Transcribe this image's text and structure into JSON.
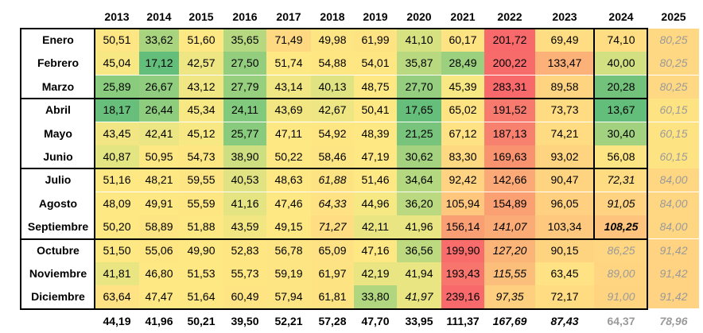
{
  "years": [
    "2013",
    "2014",
    "2015",
    "2016",
    "2017",
    "2018",
    "2019",
    "2020",
    "2021",
    "2022",
    "2023",
    "2024",
    "2025"
  ],
  "months": [
    "Enero",
    "Febrero",
    "Marzo",
    "Abril",
    "Mayo",
    "Junio",
    "Julio",
    "Agosto",
    "Septiembre",
    "Octubre",
    "Noviembre",
    "Diciembre"
  ],
  "rows": [
    {
      "values": [
        "50,51",
        "33,62",
        "51,60",
        "35,65",
        "71,49",
        "49,98",
        "61,99",
        "41,10",
        "60,17",
        "201,72",
        "69,49",
        "74,10",
        "80,25"
      ],
      "colors": [
        "#fde683",
        "#a9d47f",
        "#fee883",
        "#b5d880",
        "#ffd982",
        "#fde583",
        "#fee383",
        "#d6e182",
        "#fee383",
        "#f8696b",
        "#ffdd82",
        "#ffdd82",
        "#ffd883"
      ]
    },
    {
      "values": [
        "45,04",
        "17,12",
        "42,57",
        "27,50",
        "51,74",
        "54,88",
        "54,01",
        "35,87",
        "28,49",
        "200,22",
        "133,47",
        "40,00",
        "80,25"
      ],
      "colors": [
        "#f8e883",
        "#63be7b",
        "#eee683",
        "#93ce7e",
        "#fee883",
        "#fee683",
        "#fee683",
        "#b9d980",
        "#9bd07e",
        "#f86b6b",
        "#fcb178",
        "#d3e082",
        "#ffd883"
      ]
    },
    {
      "values": [
        "25,89",
        "26,67",
        "43,12",
        "27,79",
        "43,14",
        "40,13",
        "48,75",
        "27,70",
        "45,39",
        "283,31",
        "89,58",
        "20,28",
        "80,25"
      ],
      "colors": [
        "#8acc7e",
        "#90cd7e",
        "#f0e683",
        "#96cf7e",
        "#f0e683",
        "#dfe382",
        "#fee883",
        "#94ce7e",
        "#f8e883",
        "#f8696b",
        "#ffd481",
        "#72c27c",
        "#ffd883"
      ]
    },
    {
      "values": [
        "18,17",
        "26,44",
        "45,34",
        "24,11",
        "43,69",
        "42,67",
        "50,41",
        "17,65",
        "65,02",
        "191,52",
        "73,73",
        "13,67",
        "60,15"
      ],
      "colors": [
        "#68bf7b",
        "#8fcd7e",
        "#f8e883",
        "#81c97c",
        "#f2e683",
        "#eee683",
        "#fee883",
        "#66be7b",
        "#fee383",
        "#f87a6e",
        "#ffdc82",
        "#63be7b",
        "#fee383"
      ]
    },
    {
      "values": [
        "43,45",
        "42,41",
        "45,12",
        "25,77",
        "47,11",
        "54,92",
        "48,39",
        "21,25",
        "67,12",
        "187,13",
        "74,21",
        "30,40",
        "60,15"
      ],
      "colors": [
        "#f1e683",
        "#ebe583",
        "#f7e883",
        "#89cb7e",
        "#fee883",
        "#fee683",
        "#fee883",
        "#78c47d",
        "#fee283",
        "#f8806f",
        "#ffdc82",
        "#a2d27f",
        "#fee383"
      ]
    },
    {
      "values": [
        "40,87",
        "50,95",
        "54,73",
        "38,90",
        "50,22",
        "58,46",
        "47,19",
        "30,62",
        "83,30",
        "169,63",
        "93,02",
        "56,08",
        "60,15"
      ],
      "colors": [
        "#e3e482",
        "#fee883",
        "#fee683",
        "#cddf81",
        "#fee883",
        "#fee583",
        "#fee883",
        "#a4d27f",
        "#ffd882",
        "#f9936f",
        "#ffd481",
        "#fee583",
        "#fee383"
      ]
    },
    {
      "values": [
        "51,16",
        "48,21",
        "59,55",
        "40,53",
        "48,63",
        "61,88",
        "51,46",
        "34,64",
        "92,42",
        "142,66",
        "90,47",
        "72,31",
        "84,00"
      ],
      "colors": [
        "#fee883",
        "#fee883",
        "#fee583",
        "#e1e382",
        "#fee883",
        "#fee383",
        "#fee883",
        "#b4d880",
        "#ffd381",
        "#fba976",
        "#ffd481",
        "#ffdc82",
        "#ffd782"
      ]
    },
    {
      "values": [
        "48,09",
        "49,91",
        "55,59",
        "41,16",
        "47,46",
        "64,33",
        "44,96",
        "36,20",
        "105,94",
        "154,89",
        "96,05",
        "91,05",
        "84,00"
      ],
      "colors": [
        "#fee883",
        "#fee883",
        "#fee683",
        "#e5e482",
        "#fee883",
        "#fee283",
        "#f6e883",
        "#bbd980",
        "#fec77d",
        "#faa073",
        "#fed080",
        "#ffd381",
        "#ffd782"
      ]
    },
    {
      "values": [
        "50,20",
        "58,89",
        "51,88",
        "43,59",
        "49,15",
        "71,27",
        "42,11",
        "41,96",
        "156,14",
        "141,07",
        "103,34",
        "108,25",
        "84,00"
      ],
      "colors": [
        "#fee883",
        "#fee583",
        "#fee883",
        "#f2e683",
        "#fee883",
        "#ffdd82",
        "#e9e582",
        "#e8e582",
        "#fa9f73",
        "#fbab76",
        "#fec97e",
        "#fec47d",
        "#ffd782"
      ]
    },
    {
      "values": [
        "51,50",
        "55,06",
        "49,90",
        "52,83",
        "56,78",
        "65,09",
        "47,16",
        "36,56",
        "199,90",
        "127,20",
        "90,15",
        "86,25",
        "91,42"
      ],
      "colors": [
        "#fee883",
        "#fee683",
        "#fee883",
        "#fee783",
        "#fee583",
        "#fee283",
        "#fee883",
        "#bdda80",
        "#f86c6b",
        "#fcb579",
        "#ffd481",
        "#ffd682",
        "#ffd381"
      ]
    },
    {
      "values": [
        "41,81",
        "46,80",
        "51,53",
        "55,73",
        "59,19",
        "61,97",
        "42,19",
        "41,94",
        "193,43",
        "115,55",
        "63,45",
        "89,00",
        "91,42"
      ],
      "colors": [
        "#e8e582",
        "#fee883",
        "#fee883",
        "#fee683",
        "#fee583",
        "#fee383",
        "#e9e582",
        "#e8e582",
        "#f8756d",
        "#fcbf7b",
        "#fee283",
        "#ffd581",
        "#ffd381"
      ]
    },
    {
      "values": [
        "63,64",
        "47,47",
        "51,64",
        "60,49",
        "57,94",
        "61,81",
        "33,80",
        "41,97",
        "239,16",
        "97,35",
        "72,17",
        "91,00",
        "91,42"
      ],
      "colors": [
        "#fee283",
        "#fee883",
        "#fee883",
        "#fee483",
        "#fee583",
        "#fee383",
        "#b0d67f",
        "#e8e582",
        "#f8696b",
        "#fecf7f",
        "#ffdc82",
        "#ffd481",
        "#ffd381"
      ]
    }
  ],
  "styles": [
    [
      "",
      "",
      "",
      "",
      "",
      "",
      "",
      "",
      "",
      "",
      "",
      "",
      ""
    ],
    [
      "",
      "",
      "",
      "",
      "",
      "",
      "",
      "",
      "",
      "",
      "",
      "",
      ""
    ],
    [
      "",
      "",
      "",
      "",
      "",
      "",
      "",
      "",
      "",
      "",
      "",
      "",
      ""
    ],
    [
      "",
      "",
      "",
      "",
      "",
      "",
      "",
      "",
      "",
      "",
      "",
      "",
      ""
    ],
    [
      "",
      "",
      "",
      "",
      "",
      "",
      "",
      "",
      "",
      "",
      "",
      "",
      ""
    ],
    [
      "",
      "",
      "",
      "",
      "",
      "",
      "",
      "",
      "",
      "",
      "",
      "",
      ""
    ],
    [
      "",
      "",
      "",
      "",
      "",
      "it",
      "",
      "",
      "",
      "",
      "",
      "it",
      ""
    ],
    [
      "",
      "",
      "",
      "",
      "",
      "it",
      "",
      "",
      "",
      "",
      "",
      "it",
      ""
    ],
    [
      "",
      "",
      "",
      "",
      "",
      "it",
      "",
      "",
      "",
      "it",
      "",
      "bd it",
      ""
    ],
    [
      "",
      "",
      "",
      "",
      "",
      "",
      "",
      "",
      "",
      "it",
      "",
      "",
      ""
    ],
    [
      "",
      "",
      "",
      "",
      "",
      "",
      "",
      "",
      "",
      "it",
      "",
      "",
      ""
    ],
    [
      "",
      "",
      "",
      "",
      "",
      "",
      "",
      "it",
      "",
      "it",
      "",
      "",
      ""
    ]
  ],
  "totals": [
    "44,19",
    "41,96",
    "50,21",
    "39,50",
    "52,21",
    "57,28",
    "47,70",
    "33,95",
    "111,37",
    "167,69",
    "87,43",
    "64,37",
    "78,96"
  ],
  "totals_style": [
    "",
    "",
    "",
    "",
    "",
    "",
    "",
    "",
    "",
    "it",
    "it",
    "gray",
    ""
  ]
}
